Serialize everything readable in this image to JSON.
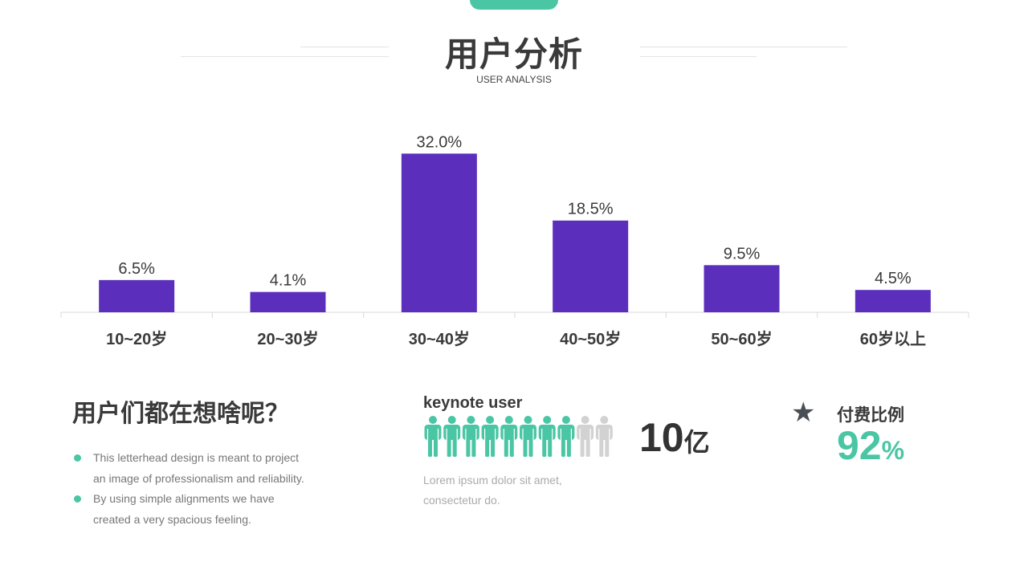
{
  "header": {
    "title": "用户分析",
    "subtitle": "USER ANALYSIS"
  },
  "colors": {
    "accent": "#4bc6a5",
    "bar": "#5b2fbc",
    "inactive": "#d2d2d2",
    "star": "#4a4f56"
  },
  "chart_data": {
    "type": "bar",
    "categories": [
      "10~20岁",
      "20~30岁",
      "30~40岁",
      "40~50岁",
      "50~60岁",
      "60岁以上"
    ],
    "values": [
      6.5,
      4.1,
      32.0,
      18.5,
      9.5,
      4.5
    ],
    "value_labels": [
      "6.5%",
      "4.1%",
      "32.0%",
      "18.5%",
      "9.5%",
      "4.5%"
    ],
    "ylim": [
      0,
      34
    ],
    "grid": false,
    "legend": "none"
  },
  "question": {
    "title": "用户们都在想啥呢？",
    "bullets": [
      {
        "line1": "This letterhead design is meant to project",
        "line2": "an image of professionalism and reliability."
      },
      {
        "line1": "By using simple alignments we have",
        "line2": "created a very spacious feeling."
      }
    ]
  },
  "keynote": {
    "title": "keynote user",
    "people_total": 10,
    "people_filled": 8,
    "big_value": "10",
    "big_unit": "亿",
    "lorem_line1": "Lorem ipsum dolor sit amet,",
    "lorem_line2": "consectetur do."
  },
  "payment": {
    "icon": "star-icon",
    "label": "付费比例",
    "value": "92",
    "unit": "%"
  }
}
